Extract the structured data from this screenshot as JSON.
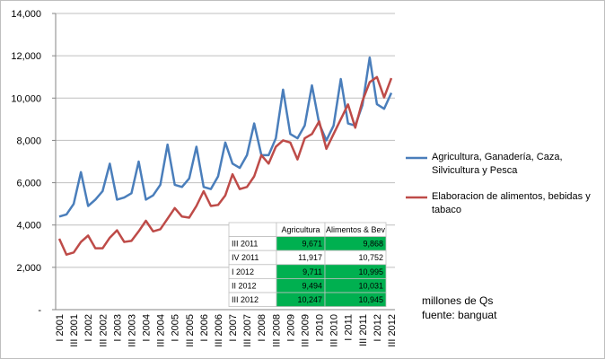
{
  "chart_data": {
    "type": "line",
    "categories": [
      "I 2001",
      null,
      "III 2001",
      null,
      "I 2002",
      null,
      "III 2002",
      null,
      "I 2003",
      null,
      "III 2003",
      null,
      "I 2004",
      null,
      "III 2004",
      null,
      "I 2005",
      null,
      "III 2005",
      null,
      "I 2006",
      null,
      "III 2006",
      null,
      "I 2007",
      null,
      "III 2007",
      null,
      "I 2008",
      null,
      "III 2008",
      null,
      "I 2009",
      null,
      "III 2009",
      null,
      "I 2010",
      null,
      "III 2010",
      null,
      "I 2011",
      null,
      "III 2011",
      null,
      "I 2012",
      null,
      "III 2012"
    ],
    "series": [
      {
        "name": "Agricultura, Ganadería,  Caza, Silvicultura y Pesca",
        "color": "#4a7ebb",
        "values": [
          4400,
          4500,
          5000,
          6500,
          4900,
          5200,
          5600,
          6900,
          5200,
          5300,
          5500,
          7000,
          5200,
          5400,
          5900,
          7800,
          5900,
          5800,
          6200,
          7700,
          5800,
          5700,
          6300,
          7900,
          6900,
          6700,
          7300,
          8800,
          7300,
          7300,
          8100,
          10400,
          8300,
          8100,
          8700,
          10600,
          8800,
          8000,
          8700,
          10900,
          8800,
          8700,
          9671,
          11917,
          9711,
          9494,
          10247
        ]
      },
      {
        "name": "Elaboracion de alimentos,  bebidas y tabaco",
        "color": "#be4b48",
        "values": [
          3350,
          2600,
          2700,
          3200,
          3500,
          2900,
          2900,
          3400,
          3750,
          3200,
          3250,
          3700,
          4200,
          3700,
          3800,
          4300,
          4800,
          4400,
          4350,
          4900,
          5600,
          4900,
          4950,
          5400,
          6400,
          5700,
          5800,
          6300,
          7300,
          6900,
          7700,
          8000,
          7900,
          7100,
          8100,
          8300,
          8900,
          7600,
          8300,
          9000,
          9700,
          8600,
          9868,
          10752,
          10995,
          10031,
          10945
        ]
      }
    ],
    "ylim": [
      0,
      14000
    ],
    "yticks": [
      {
        "value": 0,
        "label": "-"
      },
      {
        "value": 2000,
        "label": "2,000"
      },
      {
        "value": 4000,
        "label": "4,000"
      },
      {
        "value": 6000,
        "label": "6,000"
      },
      {
        "value": 8000,
        "label": "8,000"
      },
      {
        "value": 10000,
        "label": "10,000"
      },
      {
        "value": 12000,
        "label": "12,000"
      },
      {
        "value": 14000,
        "label": "14,000"
      }
    ],
    "grid": true,
    "legend": "right",
    "table": {
      "columns": [
        "",
        "Agricultura",
        "Alimentos & Bev"
      ],
      "rows": [
        [
          "III 2011",
          "9,671",
          "9,868"
        ],
        [
          "IV 2011",
          "11,917",
          "10,752"
        ],
        [
          "I 2012",
          "9,711",
          "10,995"
        ],
        [
          "II 2012",
          "9,494",
          "10,031"
        ],
        [
          "III 2012",
          "10,247",
          "10,945"
        ]
      ],
      "highlight_color": "#00b050",
      "highlighted_rows": [
        0,
        2,
        3,
        4
      ]
    },
    "notes": [
      "millones de Qs",
      "fuente: banguat"
    ]
  }
}
